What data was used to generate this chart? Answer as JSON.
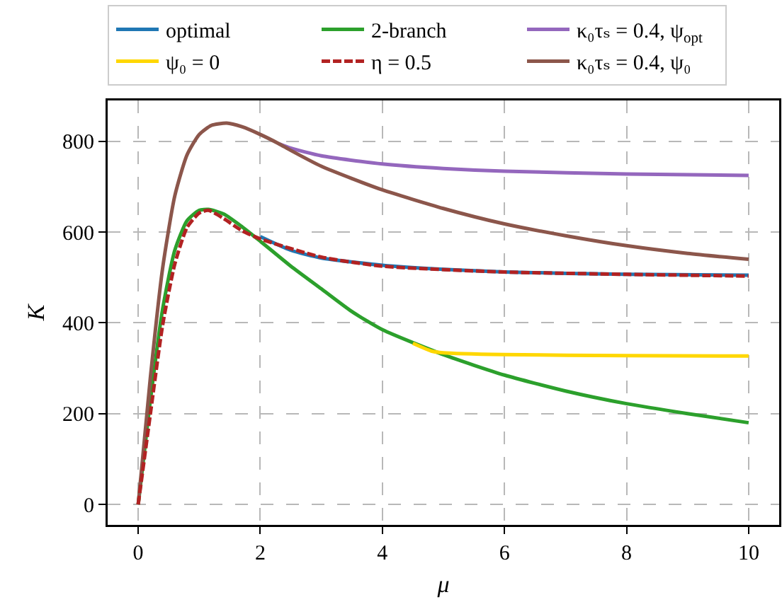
{
  "chart_data": {
    "type": "line",
    "xlabel": "μ",
    "ylabel": "K",
    "xlim": [
      -0.5,
      10.5
    ],
    "ylim": [
      -45,
      890
    ],
    "xticks": [
      0,
      2,
      4,
      6,
      8,
      10
    ],
    "yticks": [
      0,
      200,
      400,
      600,
      800
    ],
    "grid": true,
    "legend": "top",
    "line_style": "solid",
    "series": [
      {
        "name": "optimal",
        "color": "#1f77b4",
        "x": [
          2,
          2.5,
          3,
          4,
          5,
          6,
          8,
          10
        ],
        "values": [
          590,
          560,
          543,
          527,
          518,
          512,
          507,
          505
        ]
      },
      {
        "name": "2-branch",
        "color": "#2ca02c",
        "x": [
          0,
          0.2,
          0.4,
          0.6,
          0.8,
          1.0,
          1.15,
          1.4,
          1.7,
          2,
          2.5,
          3,
          3.5,
          4,
          5,
          6,
          7,
          8,
          9,
          10
        ],
        "values": [
          0,
          230,
          430,
          560,
          625,
          648,
          650,
          640,
          612,
          580,
          525,
          475,
          425,
          385,
          330,
          285,
          250,
          222,
          200,
          180
        ]
      },
      {
        "name": "κ₀τₛ = 0.4, ψ$_{opt}$",
        "color": "#9467bd",
        "x": [
          2.3,
          2.5,
          3,
          4,
          5,
          6,
          8,
          10
        ],
        "values": [
          795,
          785,
          768,
          750,
          740,
          734,
          728,
          725
        ]
      },
      {
        "name": "ψ₀ = 0",
        "color": "#ffd700",
        "x": [
          4.5,
          4.8,
          5,
          6,
          8,
          10
        ],
        "values": [
          355,
          338,
          334,
          330,
          328,
          327
        ]
      },
      {
        "name": "η = 0.5",
        "color": "#b22222",
        "line_style": "dashed",
        "x": [
          0,
          0.2,
          0.4,
          0.6,
          0.8,
          1.0,
          1.15,
          1.4,
          1.7,
          2,
          3,
          4,
          6,
          8,
          10
        ],
        "values": [
          0,
          200,
          395,
          530,
          610,
          642,
          648,
          630,
          603,
          585,
          545,
          525,
          512,
          507,
          503
        ]
      },
      {
        "name": "κ₀τₛ = 0.4, ψ₀",
        "color": "#8c564b",
        "x": [
          0,
          0.2,
          0.4,
          0.6,
          0.8,
          1.0,
          1.2,
          1.45,
          1.7,
          2,
          2.3,
          2.5,
          3,
          3.5,
          4,
          5,
          6,
          7,
          8,
          9,
          10
        ],
        "values": [
          0,
          280,
          520,
          680,
          770,
          815,
          835,
          840,
          832,
          815,
          795,
          780,
          745,
          718,
          693,
          652,
          618,
          592,
          570,
          553,
          540
        ]
      }
    ]
  }
}
